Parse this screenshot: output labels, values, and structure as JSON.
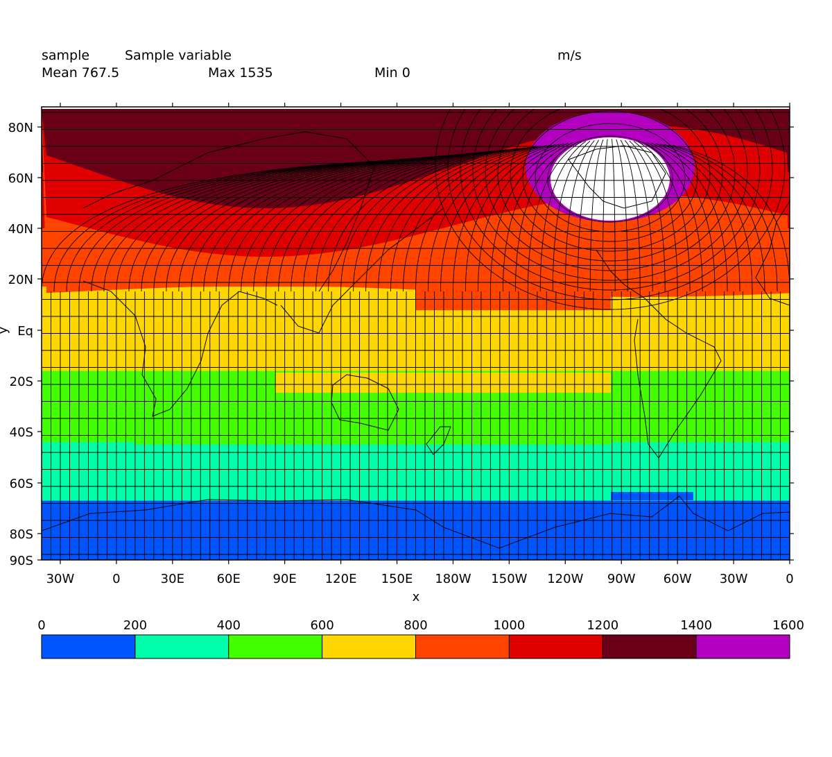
{
  "header": {
    "dataset": "sample",
    "variable": "Sample variable",
    "units": "m/s",
    "mean": "Mean 767.5",
    "max": "Max 1535",
    "min": "Min 0"
  },
  "axes": {
    "xlabel": "x",
    "ylabel": "y",
    "lat_ticks": [
      {
        "label": "80N",
        "lat": 80
      },
      {
        "label": "60N",
        "lat": 60
      },
      {
        "label": "40N",
        "lat": 40
      },
      {
        "label": "20N",
        "lat": 20
      },
      {
        "label": "Eq",
        "lat": 0
      },
      {
        "label": "20S",
        "lat": -20
      },
      {
        "label": "40S",
        "lat": -40
      },
      {
        "label": "60S",
        "lat": -60
      },
      {
        "label": "80S",
        "lat": -80
      },
      {
        "label": "90S",
        "lat": -90
      }
    ],
    "lon_ticks": [
      {
        "label": "30W",
        "lon": -30
      },
      {
        "label": "0",
        "lon": 0
      },
      {
        "label": "30E",
        "lon": 30
      },
      {
        "label": "60E",
        "lon": 60
      },
      {
        "label": "90E",
        "lon": 90
      },
      {
        "label": "120E",
        "lon": 120
      },
      {
        "label": "150E",
        "lon": 150
      },
      {
        "label": "180W",
        "lon": 180
      },
      {
        "label": "150W",
        "lon": 210
      },
      {
        "label": "120W",
        "lon": 240
      },
      {
        "label": "90W",
        "lon": 270
      },
      {
        "label": "60W",
        "lon": 300
      },
      {
        "label": "30W",
        "lon": 330
      },
      {
        "label": "0",
        "lon": 360
      }
    ],
    "lon_range": [
      -40,
      360
    ],
    "lat_range": [
      -90,
      90
    ]
  },
  "colorbar": {
    "ticks": [
      "0",
      "200",
      "400",
      "600",
      "800",
      "1000",
      "1200",
      "1400",
      "1600"
    ],
    "colors": [
      "#0055ff",
      "#00ffaa",
      "#44ff00",
      "#ffd700",
      "#ff4400",
      "#e00000",
      "#6a0017",
      "#b300c0"
    ]
  },
  "bands": [
    {
      "color": "#0055ff",
      "from": -90,
      "to": -67
    },
    {
      "color": "#00ffaa",
      "from": -67,
      "to": -45
    },
    {
      "color": "#44ff00",
      "from": -45,
      "to": -16
    },
    {
      "color": "#ffd700",
      "from": -16,
      "to": 17
    },
    {
      "color": "#ff4400",
      "from": 17,
      "to": 40
    },
    {
      "color": "#e00000",
      "from": 40,
      "to": 62
    },
    {
      "color": "#6a0017",
      "from": 62,
      "to": 90
    }
  ],
  "colors": {
    "white_spot": "#ffffff",
    "magenta_ring": "#b300c0",
    "grid_line": "#000000"
  }
}
